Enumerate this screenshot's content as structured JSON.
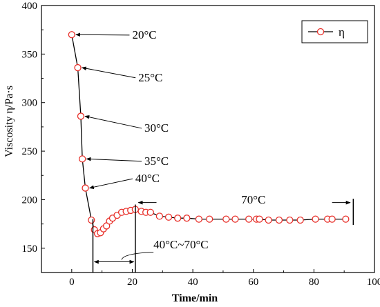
{
  "chart_data": {
    "type": "line",
    "title": "",
    "xlabel": "Time/min",
    "ylabel": "Viscosity η/Pa·s",
    "xlim": [
      -10,
      100
    ],
    "ylim": [
      125,
      400
    ],
    "xticks": [
      0,
      20,
      40,
      60,
      80,
      100
    ],
    "yticks": [
      150,
      200,
      250,
      300,
      350,
      400
    ],
    "xtick_labels": [
      "0",
      "20",
      "40",
      "60",
      "80",
      "100"
    ],
    "ytick_labels": [
      "150",
      "200",
      "250",
      "300",
      "350",
      "400"
    ],
    "grid": false,
    "legend": {
      "position": "top-right",
      "entries": [
        "η"
      ]
    },
    "series": [
      {
        "name": "η",
        "color": "#e8302a",
        "marker": "open-circle",
        "x": [
          0,
          2,
          3,
          3.5,
          4.5,
          6.5,
          7.5,
          8.5,
          9.5,
          10.5,
          11.5,
          12.5,
          13.5,
          15,
          16.5,
          18,
          19.5,
          21,
          23,
          24.5,
          26,
          29,
          32,
          35,
          38,
          42,
          45.5,
          51,
          54,
          58.5,
          61,
          62,
          65,
          68.5,
          72,
          75.5,
          80.5,
          84.5,
          86,
          90.5
        ],
        "y": [
          370,
          336,
          286,
          242,
          212,
          179,
          169,
          165,
          166,
          170,
          173,
          178,
          181,
          184,
          187,
          188,
          189,
          190,
          188,
          187,
          187,
          183,
          182,
          181,
          181,
          180,
          180,
          180,
          180,
          180,
          180,
          180,
          179,
          179,
          179,
          179,
          180,
          180,
          180,
          180
        ]
      }
    ],
    "annotations": [
      {
        "text": "20°C",
        "arrow_to": [
          0,
          370
        ],
        "label_at": [
          20,
          366
        ]
      },
      {
        "text": "25°C",
        "arrow_to": [
          2,
          336
        ],
        "label_at": [
          22,
          322
        ]
      },
      {
        "text": "30°C",
        "arrow_to": [
          3,
          286
        ],
        "label_at": [
          24,
          270
        ]
      },
      {
        "text": "35°C",
        "arrow_to": [
          3.5,
          242
        ],
        "label_at": [
          24,
          236
        ]
      },
      {
        "text": "40°C",
        "arrow_to": [
          4.5,
          212
        ],
        "label_at": [
          21,
          218
        ]
      },
      {
        "text": "70°C",
        "label_at": [
          56,
          196
        ]
      },
      {
        "text": "40°C~70°C",
        "label_at": [
          27,
          150
        ]
      }
    ],
    "markers": [
      {
        "type": "vline",
        "x": 7,
        "y_range": [
          125,
          180
        ]
      },
      {
        "type": "vline",
        "x": 21,
        "y_range": [
          125,
          195
        ]
      },
      {
        "type": "vline",
        "x": 93,
        "y_range": [
          174,
          201
        ]
      },
      {
        "type": "double-arrow",
        "from": [
          7,
          136
        ],
        "to": [
          21,
          136
        ]
      },
      {
        "type": "arrow",
        "from": [
          28,
          197
        ],
        "to": [
          22,
          197
        ]
      },
      {
        "type": "arrow",
        "from": [
          86,
          197
        ],
        "to": [
          92,
          197
        ]
      }
    ]
  }
}
